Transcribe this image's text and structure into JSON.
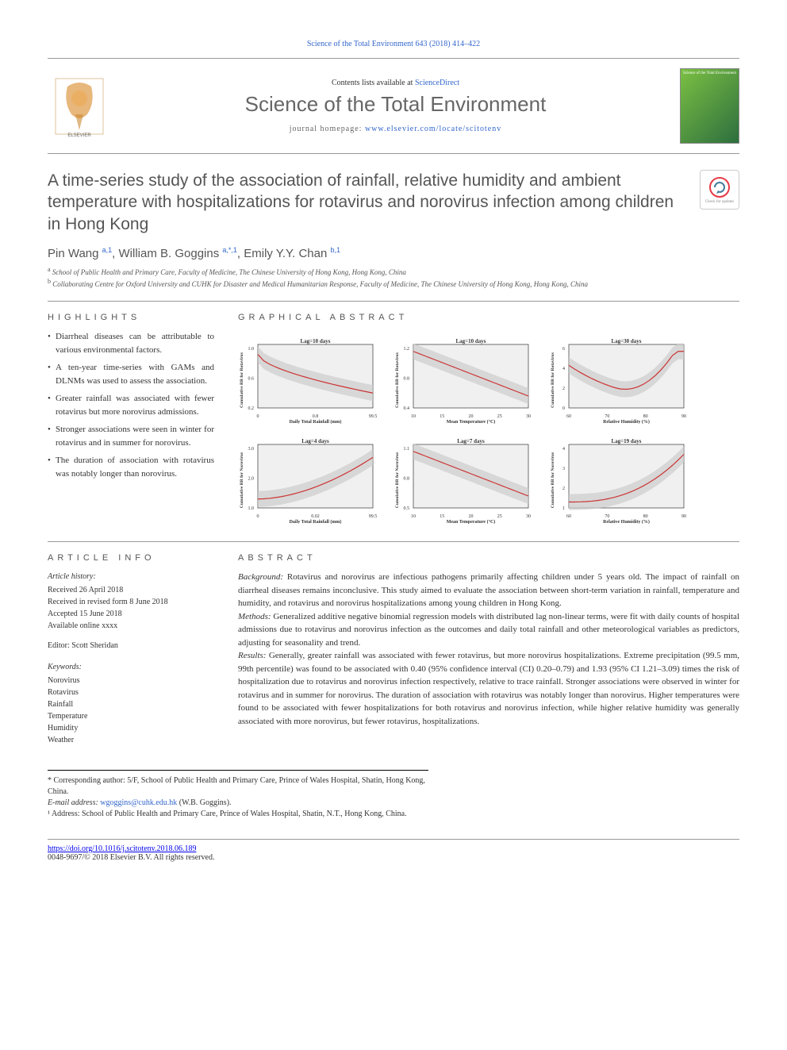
{
  "top_citation": "Science of the Total Environment 643 (2018) 414–422",
  "header": {
    "contents_prefix": "Contents lists available at ",
    "contents_link": "ScienceDirect",
    "journal_title": "Science of the Total Environment",
    "homepage_prefix": "journal homepage: ",
    "homepage_url": "www.elsevier.com/locate/scitotenv",
    "cover_label": "Science of the Total Environment"
  },
  "article": {
    "title": "A time-series study of the association of rainfall, relative humidity and ambient temperature with hospitalizations for rotavirus and norovirus infection among children in Hong Kong",
    "check_updates": "Check for updates",
    "authors_html": "Pin Wang <sup>a,1</sup>, William B. Goggins <sup>a,*,1</sup>, Emily Y.Y. Chan <sup>b,1</sup>",
    "affiliations": [
      {
        "sup": "a",
        "text": "School of Public Health and Primary Care, Faculty of Medicine, The Chinese University of Hong Kong, Hong Kong, China"
      },
      {
        "sup": "b",
        "text": "Collaborating Centre for Oxford University and CUHK for Disaster and Medical Humanitarian Response, Faculty of Medicine, The Chinese University of Hong Kong, Hong Kong, China"
      }
    ]
  },
  "highlights": {
    "header": "HIGHLIGHTS",
    "items": [
      "Diarrheal diseases can be attributable to various environmental factors.",
      "A ten-year time-series with GAMs and DLNMs was used to assess the association.",
      "Greater rainfall was associated with fewer rotavirus but more norovirus admissions.",
      "Stronger associations were seen in winter for rotavirus and in summer for norovirus.",
      "The duration of association with rotavirus was notably longer than norovirus."
    ]
  },
  "graphical": {
    "header": "GRAPHICAL ABSTRACT",
    "charts": [
      {
        "title": "Lag=10 days",
        "ylabel": "Cumulative RR for Rotavirus",
        "xlabel": "Daily Total Rainfall (mm)",
        "x_ticks": [
          "0",
          "0.8",
          "99.5"
        ],
        "y_ticks": [
          "0.2",
          "0.6",
          "1.0"
        ],
        "line_color": "#cc3333",
        "ci_color": "#cccccc",
        "curve_type": "decreasing_convex",
        "background": "#f0f0f0"
      },
      {
        "title": "Lag=10 days",
        "ylabel": "Cumulative RR for Rotavirus",
        "xlabel": "Mean Temperature (°C)",
        "x_ticks": [
          "10",
          "15",
          "20",
          "25",
          "30"
        ],
        "y_ticks": [
          "0.4",
          "0.8",
          "1.2"
        ],
        "line_color": "#cc3333",
        "ci_color": "#cccccc",
        "curve_type": "decreasing",
        "background": "#f0f0f0"
      },
      {
        "title": "Lag=30 days",
        "ylabel": "Cumulative RR for Rotavirus",
        "xlabel": "Relative Humidity (%)",
        "x_ticks": [
          "60",
          "70",
          "80",
          "90"
        ],
        "y_ticks": [
          "0",
          "2",
          "4",
          "6"
        ],
        "line_color": "#cc3333",
        "ci_color": "#cccccc",
        "curve_type": "u_shape",
        "background": "#f0f0f0"
      },
      {
        "title": "Lag=4 days",
        "ylabel": "Cumulative RR for Norovirus",
        "xlabel": "Daily Total Rainfall (mm)",
        "x_ticks": [
          "0",
          "0.02",
          "99.5"
        ],
        "y_ticks": [
          "1.0",
          "2.0",
          "3.0"
        ],
        "line_color": "#cc3333",
        "ci_color": "#cccccc",
        "curve_type": "increasing_convex",
        "background": "#f0f0f0"
      },
      {
        "title": "Lag=7 days",
        "ylabel": "Cumulative RR for Norovirus",
        "xlabel": "Mean Temperature (°C)",
        "x_ticks": [
          "10",
          "15",
          "20",
          "25",
          "30"
        ],
        "y_ticks": [
          "0.5",
          "0.8",
          "1.1"
        ],
        "line_color": "#cc3333",
        "ci_color": "#cccccc",
        "curve_type": "decreasing",
        "background": "#f0f0f0"
      },
      {
        "title": "Lag=19 days",
        "ylabel": "Cumulative RR for Norovirus",
        "xlabel": "Relative Humidity (%)",
        "x_ticks": [
          "60",
          "70",
          "80",
          "90"
        ],
        "y_ticks": [
          "1",
          "2",
          "3",
          "4"
        ],
        "line_color": "#cc3333",
        "ci_color": "#cccccc",
        "curve_type": "increasing_steep",
        "background": "#f0f0f0"
      }
    ]
  },
  "article_info": {
    "header": "ARTICLE INFO",
    "history_head": "Article history:",
    "history": [
      "Received 26 April 2018",
      "Received in revised form 8 June 2018",
      "Accepted 15 June 2018",
      "Available online xxxx"
    ],
    "editor": "Editor: Scott Sheridan",
    "keywords_head": "Keywords:",
    "keywords": [
      "Norovirus",
      "Rotavirus",
      "Rainfall",
      "Temperature",
      "Humidity",
      "Weather"
    ]
  },
  "abstract": {
    "header": "ABSTRACT",
    "paragraphs": [
      {
        "label": "Background:",
        "text": "Rotavirus and norovirus are infectious pathogens primarily affecting children under 5 years old. The impact of rainfall on diarrheal diseases remains inconclusive. This study aimed to evaluate the association between short-term variation in rainfall, temperature and humidity, and rotavirus and norovirus hospitalizations among young children in Hong Kong."
      },
      {
        "label": "Methods:",
        "text": "Generalized additive negative binomial regression models with distributed lag non-linear terms, were fit with daily counts of hospital admissions due to rotavirus and norovirus infection as the outcomes and daily total rainfall and other meteorological variables as predictors, adjusting for seasonality and trend."
      },
      {
        "label": "Results:",
        "text": "Generally, greater rainfall was associated with fewer rotavirus, but more norovirus hospitalizations. Extreme precipitation (99.5 mm, 99th percentile) was found to be associated with 0.40 (95% confidence interval (CI) 0.20–0.79) and 1.93 (95% CI 1.21–3.09) times the risk of hospitalization due to rotavirus and norovirus infection respectively, relative to trace rainfall. Stronger associations were observed in winter for rotavirus and in summer for norovirus. The duration of association with rotavirus was notably longer than norovirus. Higher temperatures were found to be associated with fewer hospitalizations for both rotavirus and norovirus infection, while higher relative humidity was generally associated with more norovirus, but fewer rotavirus, hospitalizations."
      }
    ]
  },
  "footnotes": {
    "corresponding": "* Corresponding author: 5/F, School of Public Health and Primary Care, Prince of Wales Hospital, Shatin, Hong Kong, China.",
    "email_label": "E-mail address: ",
    "email": "wgoggins@cuhk.edu.hk",
    "email_suffix": " (W.B. Goggins).",
    "note1": "¹ Address: School of Public Health and Primary Care, Prince of Wales Hospital, Shatin, N.T., Hong Kong, China."
  },
  "bottom": {
    "doi": "https://doi.org/10.1016/j.scitotenv.2018.06.189",
    "copyright": "0048-9697/© 2018 Elsevier B.V. All rights reserved."
  },
  "colors": {
    "link": "#3366cc",
    "text": "#333333",
    "heading_grey": "#666666",
    "elsevier_orange": "#ff6600",
    "chart_line": "#cc3333",
    "chart_ci": "#cccccc",
    "chart_bg": "#f0f0f0"
  },
  "fonts": {
    "body": "Georgia / Times, serif, ~12px",
    "headings": "Arial, sans-serif",
    "journal_title_size": 26,
    "article_title_size": 21
  }
}
